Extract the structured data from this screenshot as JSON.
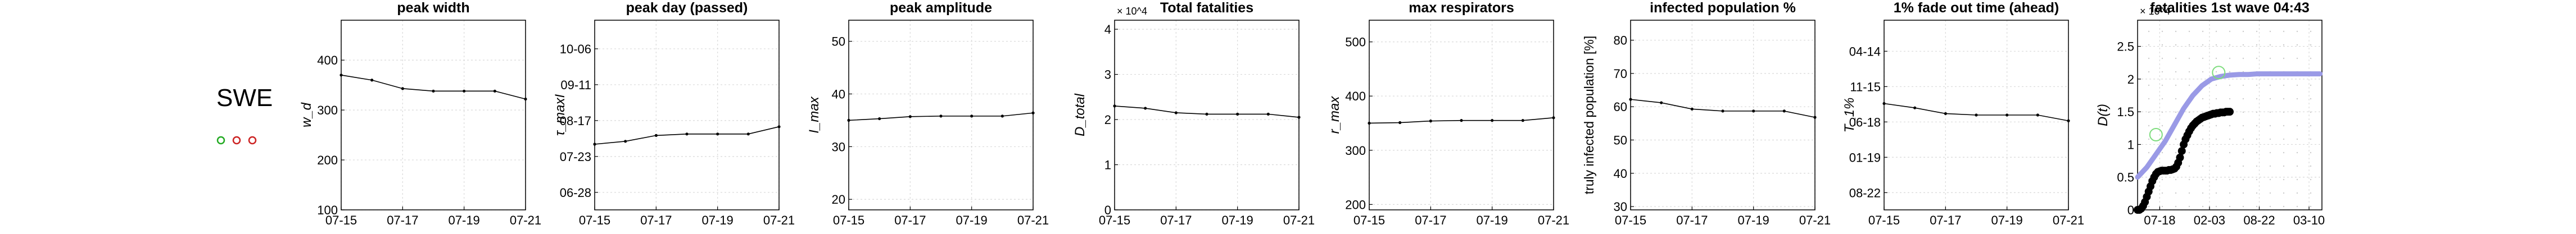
{
  "country": "SWE",
  "legend_dots": [
    {
      "color": "#22aa22"
    },
    {
      "color": "#cc2222"
    },
    {
      "color": "#cc2222"
    }
  ],
  "colors": {
    "axis": "#000000",
    "grid": "#d9d9d9",
    "line": "#000000",
    "fit": "#9a9ae6",
    "marker_green": "#7ddc7d"
  },
  "chart_data": [
    {
      "type": "line",
      "title": "peak width",
      "ylabel": "w_d",
      "x": [
        "07-15",
        "07-16",
        "07-17",
        "07-18",
        "07-19",
        "07-20",
        "07-21"
      ],
      "xticks": [
        "07-15",
        "07-17",
        "07-19",
        "07-21"
      ],
      "ylim": [
        100,
        480
      ],
      "yticks": [
        "100",
        "200",
        "300",
        "400"
      ],
      "values": [
        370,
        360,
        343,
        338,
        338,
        338,
        322
      ],
      "grid": true
    },
    {
      "type": "line",
      "title": "peak day (passed)",
      "ylabel": "τ_maxI",
      "x": [
        "07-15",
        "07-16",
        "07-17",
        "07-18",
        "07-19",
        "07-20",
        "07-21"
      ],
      "xticks": [
        "07-15",
        "07-17",
        "07-19",
        "07-21"
      ],
      "ylim": [
        0,
        6.5
      ],
      "yticks": [
        "06-28",
        "07-23",
        "08-17",
        "09-11",
        "10-06"
      ],
      "values": [
        2.25,
        2.35,
        2.55,
        2.6,
        2.6,
        2.6,
        2.85
      ],
      "grid": true
    },
    {
      "type": "line",
      "title": "peak amplitude",
      "ylabel": "I_max",
      "x": [
        "07-15",
        "07-16",
        "07-17",
        "07-18",
        "07-19",
        "07-20",
        "07-21"
      ],
      "xticks": [
        "07-15",
        "07-17",
        "07-19",
        "07-21"
      ],
      "ylim": [
        18,
        54
      ],
      "yticks": [
        "20",
        "30",
        "40",
        "50"
      ],
      "values": [
        35,
        35.3,
        35.7,
        35.8,
        35.8,
        35.8,
        36.4
      ],
      "grid": true
    },
    {
      "type": "line",
      "title": "Total fatalities",
      "ylabel": "D_total",
      "multiplier": "× 10^4",
      "x": [
        "07-15",
        "07-16",
        "07-17",
        "07-18",
        "07-19",
        "07-20",
        "07-21"
      ],
      "xticks": [
        "07-15",
        "07-17",
        "07-19",
        "07-21"
      ],
      "ylim": [
        0,
        4.2
      ],
      "yticks": [
        "0",
        "1",
        "2",
        "3",
        "4"
      ],
      "values": [
        2.3,
        2.25,
        2.15,
        2.12,
        2.12,
        2.12,
        2.05
      ],
      "grid": true
    },
    {
      "type": "line",
      "title": "max respirators",
      "ylabel": "r_max",
      "x": [
        "07-15",
        "07-16",
        "07-17",
        "07-18",
        "07-19",
        "07-20",
        "07-21"
      ],
      "xticks": [
        "07-15",
        "07-17",
        "07-19",
        "07-21"
      ],
      "ylim": [
        190,
        540
      ],
      "yticks": [
        "200",
        "300",
        "400",
        "500"
      ],
      "values": [
        350,
        351,
        354,
        355,
        355,
        355,
        360
      ],
      "grid": true
    },
    {
      "type": "line",
      "title": "infected population %",
      "ylabel": "truly infected population [%]",
      "x": [
        "07-15",
        "07-16",
        "07-17",
        "07-18",
        "07-19",
        "07-20",
        "07-21"
      ],
      "xticks": [
        "07-15",
        "07-17",
        "07-19",
        "07-21"
      ],
      "ylim": [
        29,
        86
      ],
      "yticks": [
        "30",
        "40",
        "50",
        "60",
        "70",
        "80"
      ],
      "values": [
        62.2,
        61.2,
        59.3,
        58.7,
        58.7,
        58.7,
        56.8
      ],
      "grid": true
    },
    {
      "type": "line",
      "title": "1% fade out time (ahead)",
      "ylabel": "T_1%",
      "x": [
        "07-15",
        "07-16",
        "07-17",
        "07-18",
        "07-19",
        "07-20",
        "07-21"
      ],
      "xticks": [
        "07-15",
        "07-17",
        "07-19",
        "07-21"
      ],
      "ylim": [
        0,
        6.6
      ],
      "yticks": [
        "08-22",
        "01-19",
        "06-18",
        "11-15",
        "04-14"
      ],
      "values": [
        3.7,
        3.55,
        3.35,
        3.3,
        3.3,
        3.3,
        3.1
      ],
      "grid": true
    },
    {
      "type": "scatter",
      "title": "fatalities 1st wave 04:43",
      "ylabel": "D(t)",
      "multiplier": "× 10^4",
      "xlim": [
        0,
        1
      ],
      "ylim": [
        0,
        2.9
      ],
      "xticks": [
        "07-18",
        "02-03",
        "08-22",
        "03-10"
      ],
      "yticks": [
        "0",
        "0.5",
        "1",
        "1.5",
        "2",
        "2.5"
      ],
      "fit_curve": {
        "x": [
          0,
          0.05,
          0.1,
          0.15,
          0.2,
          0.25,
          0.3,
          0.35,
          0.4,
          0.45,
          0.5,
          0.55,
          0.6,
          0.65,
          0.7,
          0.75,
          0.8,
          0.85,
          0.9,
          0.95,
          0.99
        ],
        "y": [
          0.5,
          0.65,
          0.85,
          1.05,
          1.3,
          1.55,
          1.75,
          1.9,
          2.0,
          2.04,
          2.06,
          2.07,
          2.07,
          2.08,
          2.08,
          2.08,
          2.08,
          2.08,
          2.08,
          2.08,
          2.08
        ]
      },
      "observed": {
        "x": [
          0.0,
          0.01,
          0.02,
          0.03,
          0.04,
          0.05,
          0.06,
          0.07,
          0.08,
          0.09,
          0.1,
          0.11,
          0.12,
          0.13,
          0.14,
          0.15,
          0.16,
          0.17,
          0.18,
          0.19,
          0.2,
          0.21,
          0.22,
          0.23,
          0.24,
          0.25,
          0.26,
          0.27,
          0.28,
          0.29,
          0.3,
          0.31,
          0.32,
          0.33,
          0.34,
          0.35,
          0.36,
          0.37,
          0.38,
          0.39,
          0.4,
          0.41,
          0.42,
          0.43,
          0.44,
          0.45,
          0.46,
          0.47,
          0.48,
          0.49,
          0.5
        ],
        "y": [
          0.0,
          0.0,
          0.02,
          0.06,
          0.12,
          0.2,
          0.28,
          0.36,
          0.44,
          0.5,
          0.55,
          0.58,
          0.59,
          0.6,
          0.6,
          0.6,
          0.6,
          0.61,
          0.61,
          0.62,
          0.63,
          0.66,
          0.72,
          0.8,
          0.9,
          1.0,
          1.08,
          1.14,
          1.2,
          1.25,
          1.29,
          1.32,
          1.35,
          1.37,
          1.39,
          1.41,
          1.42,
          1.43,
          1.44,
          1.45,
          1.46,
          1.47,
          1.47,
          1.48,
          1.48,
          1.49,
          1.49,
          1.49,
          1.5,
          1.5,
          1.5
        ]
      },
      "markers": [
        {
          "x": 0.1,
          "y": 1.15
        },
        {
          "x": 0.44,
          "y": 2.1
        }
      ],
      "grid": true
    }
  ]
}
